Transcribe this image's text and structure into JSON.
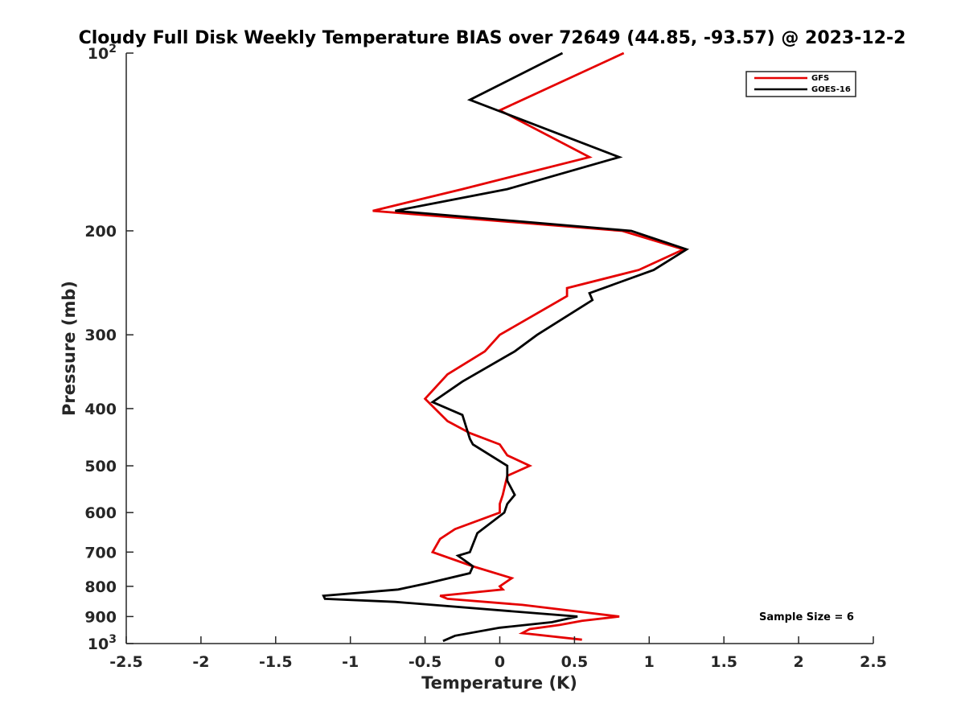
{
  "chart_data": {
    "type": "line",
    "title": "Cloudy Full Disk Weekly Temperature BIAS over 72649 (44.85, -93.57) @ 2023-12-2",
    "xlabel": "Temperature (K)",
    "ylabel": "Pressure (mb)",
    "xlim": [
      -2.5,
      2.5
    ],
    "ylim": [
      100,
      1000
    ],
    "yscale": "log",
    "y_reversed": true,
    "grid": false,
    "legend_position": "top-right",
    "x_ticks": [
      "-2.5",
      "-2",
      "-1.5",
      "-1",
      "-0.5",
      "0",
      "0.5",
      "1",
      "1.5",
      "2",
      "2.5"
    ],
    "y_ticks": [
      {
        "value": 100,
        "label": "10",
        "sup": "2"
      },
      {
        "value": 200,
        "label": "200",
        "sup": ""
      },
      {
        "value": 300,
        "label": "300",
        "sup": ""
      },
      {
        "value": 400,
        "label": "400",
        "sup": ""
      },
      {
        "value": 500,
        "label": "500",
        "sup": ""
      },
      {
        "value": 600,
        "label": "600",
        "sup": ""
      },
      {
        "value": 700,
        "label": "700",
        "sup": ""
      },
      {
        "value": 800,
        "label": "800",
        "sup": ""
      },
      {
        "value": 900,
        "label": "900",
        "sup": ""
      },
      {
        "value": 1000,
        "label": "10",
        "sup": "3"
      }
    ],
    "series": [
      {
        "name": "GFS",
        "color": "#e50000",
        "points": [
          [
            0.83,
            100
          ],
          [
            0.0,
            125
          ],
          [
            0.6,
            150
          ],
          [
            -0.25,
            170
          ],
          [
            -0.85,
            185
          ],
          [
            0.82,
            200
          ],
          [
            1.23,
            215
          ],
          [
            0.93,
            233
          ],
          [
            0.45,
            250
          ],
          [
            0.45,
            258
          ],
          [
            0.0,
            300
          ],
          [
            -0.1,
            320
          ],
          [
            -0.35,
            350
          ],
          [
            -0.5,
            385
          ],
          [
            -0.35,
            420
          ],
          [
            -0.2,
            440
          ],
          [
            0.0,
            460
          ],
          [
            0.05,
            480
          ],
          [
            0.2,
            500
          ],
          [
            0.05,
            520
          ],
          [
            0.02,
            560
          ],
          [
            0.0,
            580
          ],
          [
            0.0,
            600
          ],
          [
            -0.3,
            640
          ],
          [
            -0.4,
            665
          ],
          [
            -0.45,
            700
          ],
          [
            -0.18,
            740
          ],
          [
            0.08,
            775
          ],
          [
            0.0,
            800
          ],
          [
            0.02,
            810
          ],
          [
            -0.4,
            830
          ],
          [
            -0.35,
            840
          ],
          [
            0.15,
            860
          ],
          [
            0.8,
            900
          ],
          [
            0.55,
            915
          ],
          [
            0.4,
            930
          ],
          [
            0.2,
            945
          ],
          [
            0.15,
            960
          ],
          [
            0.55,
            985
          ]
        ]
      },
      {
        "name": "GOES-16",
        "color": "#000000",
        "points": [
          [
            0.42,
            100
          ],
          [
            -0.2,
            120
          ],
          [
            0.8,
            150
          ],
          [
            0.05,
            170
          ],
          [
            -0.7,
            185
          ],
          [
            0.88,
            200
          ],
          [
            1.25,
            215
          ],
          [
            1.03,
            233
          ],
          [
            0.6,
            255
          ],
          [
            0.62,
            262
          ],
          [
            0.25,
            300
          ],
          [
            0.1,
            320
          ],
          [
            -0.25,
            360
          ],
          [
            -0.45,
            390
          ],
          [
            -0.25,
            410
          ],
          [
            -0.2,
            450
          ],
          [
            -0.18,
            460
          ],
          [
            0.05,
            500
          ],
          [
            0.05,
            530
          ],
          [
            0.1,
            560
          ],
          [
            0.05,
            580
          ],
          [
            0.03,
            600
          ],
          [
            -0.15,
            650
          ],
          [
            -0.2,
            700
          ],
          [
            -0.28,
            710
          ],
          [
            -0.18,
            740
          ],
          [
            -0.2,
            760
          ],
          [
            -0.48,
            790
          ],
          [
            -0.68,
            810
          ],
          [
            -1.18,
            830
          ],
          [
            -1.17,
            840
          ],
          [
            -0.7,
            850
          ],
          [
            0.52,
            900
          ],
          [
            0.35,
            920
          ],
          [
            0.0,
            940
          ],
          [
            -0.3,
            970
          ],
          [
            -0.38,
            990
          ]
        ]
      }
    ],
    "annotations": [
      "Sample Size = 6"
    ]
  }
}
